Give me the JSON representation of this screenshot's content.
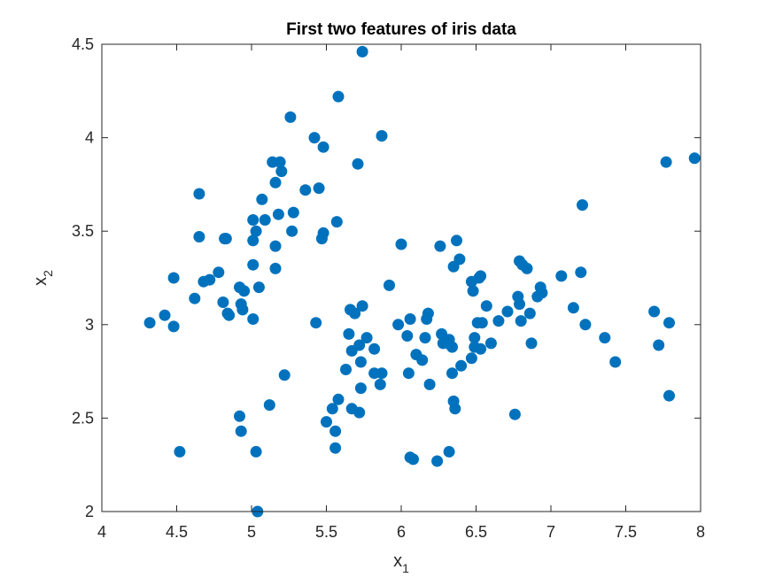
{
  "colors": {
    "marker": "#0072BD",
    "axis": "#262626",
    "background": "#ffffff"
  },
  "chart_data": {
    "type": "scatter",
    "title": "First two features of iris data",
    "xlabel": {
      "base": "x",
      "sub": "1"
    },
    "ylabel": {
      "base": "x",
      "sub": "2"
    },
    "xlim": [
      4,
      8
    ],
    "ylim": [
      2,
      4.5
    ],
    "xticks": [
      4,
      4.5,
      5,
      5.5,
      6,
      6.5,
      7,
      7.5,
      8
    ],
    "yticks": [
      2,
      2.5,
      3,
      3.5,
      4,
      4.5
    ],
    "xtick_labels": [
      "4",
      "4.5",
      "5",
      "5.5",
      "6",
      "6.5",
      "7",
      "7.5",
      "8"
    ],
    "ytick_labels": [
      "2",
      "2.5",
      "3",
      "3.5",
      "4",
      "4.5"
    ],
    "grid": false,
    "series": [
      {
        "points": [
          [
            4.32,
            3.01
          ],
          [
            4.42,
            3.05
          ],
          [
            4.48,
            2.99
          ],
          [
            4.48,
            3.25
          ],
          [
            4.52,
            2.32
          ],
          [
            4.62,
            3.14
          ],
          [
            4.65,
            3.7
          ],
          [
            4.65,
            3.47
          ],
          [
            4.68,
            3.23
          ],
          [
            4.72,
            3.24
          ],
          [
            4.78,
            3.28
          ],
          [
            4.81,
            3.12
          ],
          [
            4.82,
            3.46
          ],
          [
            4.83,
            3.46
          ],
          [
            4.84,
            3.06
          ],
          [
            4.85,
            3.05
          ],
          [
            4.92,
            2.51
          ],
          [
            4.92,
            3.2
          ],
          [
            4.93,
            2.43
          ],
          [
            4.93,
            3.11
          ],
          [
            4.94,
            3.08
          ],
          [
            4.95,
            3.18
          ],
          [
            5.01,
            3.03
          ],
          [
            5.01,
            3.32
          ],
          [
            5.01,
            3.45
          ],
          [
            5.01,
            3.56
          ],
          [
            5.03,
            3.5
          ],
          [
            5.03,
            2.32
          ],
          [
            5.04,
            2.0
          ],
          [
            5.05,
            3.2
          ],
          [
            5.07,
            3.67
          ],
          [
            5.09,
            3.56
          ],
          [
            5.12,
            2.57
          ],
          [
            5.14,
            3.87
          ],
          [
            5.16,
            3.76
          ],
          [
            5.16,
            3.3
          ],
          [
            5.16,
            3.42
          ],
          [
            5.18,
            3.59
          ],
          [
            5.19,
            3.87
          ],
          [
            5.2,
            3.82
          ],
          [
            5.22,
            2.73
          ],
          [
            5.26,
            4.11
          ],
          [
            5.27,
            3.5
          ],
          [
            5.28,
            3.6
          ],
          [
            5.36,
            3.72
          ],
          [
            5.42,
            4.0
          ],
          [
            5.43,
            3.01
          ],
          [
            5.45,
            3.73
          ],
          [
            5.47,
            3.46
          ],
          [
            5.48,
            3.49
          ],
          [
            5.48,
            3.95
          ],
          [
            5.5,
            2.48
          ],
          [
            5.54,
            2.55
          ],
          [
            5.56,
            2.34
          ],
          [
            5.56,
            2.43
          ],
          [
            5.57,
            3.55
          ],
          [
            5.58,
            2.6
          ],
          [
            5.58,
            4.22
          ],
          [
            5.63,
            2.76
          ],
          [
            5.65,
            2.95
          ],
          [
            5.66,
            3.08
          ],
          [
            5.67,
            2.86
          ],
          [
            5.67,
            2.55
          ],
          [
            5.69,
            3.06
          ],
          [
            5.71,
            3.86
          ],
          [
            5.72,
            2.53
          ],
          [
            5.72,
            2.89
          ],
          [
            5.73,
            2.66
          ],
          [
            5.73,
            2.8
          ],
          [
            5.74,
            3.1
          ],
          [
            5.74,
            4.46
          ],
          [
            5.77,
            2.93
          ],
          [
            5.82,
            2.87
          ],
          [
            5.82,
            2.74
          ],
          [
            5.86,
            2.68
          ],
          [
            5.87,
            2.74
          ],
          [
            5.87,
            4.01
          ],
          [
            5.92,
            3.21
          ],
          [
            5.98,
            3.0
          ],
          [
            6.0,
            3.43
          ],
          [
            6.04,
            2.94
          ],
          [
            6.05,
            2.74
          ],
          [
            6.06,
            2.29
          ],
          [
            6.06,
            3.03
          ],
          [
            6.08,
            2.28
          ],
          [
            6.1,
            2.84
          ],
          [
            6.14,
            2.81
          ],
          [
            6.16,
            2.93
          ],
          [
            6.17,
            3.03
          ],
          [
            6.18,
            3.06
          ],
          [
            6.19,
            2.68
          ],
          [
            6.24,
            2.27
          ],
          [
            6.26,
            3.42
          ],
          [
            6.27,
            2.95
          ],
          [
            6.28,
            2.9
          ],
          [
            6.31,
            2.9
          ],
          [
            6.32,
            2.32
          ],
          [
            6.32,
            2.92
          ],
          [
            6.34,
            2.88
          ],
          [
            6.34,
            2.74
          ],
          [
            6.35,
            2.59
          ],
          [
            6.35,
            3.31
          ],
          [
            6.36,
            2.55
          ],
          [
            6.37,
            3.45
          ],
          [
            6.39,
            3.35
          ],
          [
            6.4,
            2.78
          ],
          [
            6.47,
            2.82
          ],
          [
            6.47,
            3.23
          ],
          [
            6.48,
            3.18
          ],
          [
            6.49,
            2.88
          ],
          [
            6.49,
            2.93
          ],
          [
            6.51,
            3.01
          ],
          [
            6.52,
            3.25
          ],
          [
            6.53,
            3.26
          ],
          [
            6.53,
            2.87
          ],
          [
            6.54,
            3.01
          ],
          [
            6.57,
            3.1
          ],
          [
            6.6,
            2.9
          ],
          [
            6.65,
            3.02
          ],
          [
            6.71,
            3.07
          ],
          [
            6.76,
            2.52
          ],
          [
            6.78,
            3.15
          ],
          [
            6.79,
            3.34
          ],
          [
            6.79,
            3.11
          ],
          [
            6.8,
            3.02
          ],
          [
            6.81,
            3.32
          ],
          [
            6.84,
            3.3
          ],
          [
            6.86,
            3.06
          ],
          [
            6.87,
            2.9
          ],
          [
            6.91,
            3.15
          ],
          [
            6.93,
            3.2
          ],
          [
            6.94,
            3.17
          ],
          [
            7.07,
            3.26
          ],
          [
            7.15,
            3.09
          ],
          [
            7.2,
            3.28
          ],
          [
            7.21,
            3.64
          ],
          [
            7.23,
            3.0
          ],
          [
            7.36,
            2.93
          ],
          [
            7.43,
            2.8
          ],
          [
            7.69,
            3.07
          ],
          [
            7.72,
            2.89
          ],
          [
            7.77,
            3.87
          ],
          [
            7.79,
            3.01
          ],
          [
            7.79,
            2.62
          ],
          [
            7.96,
            3.89
          ]
        ]
      }
    ]
  }
}
